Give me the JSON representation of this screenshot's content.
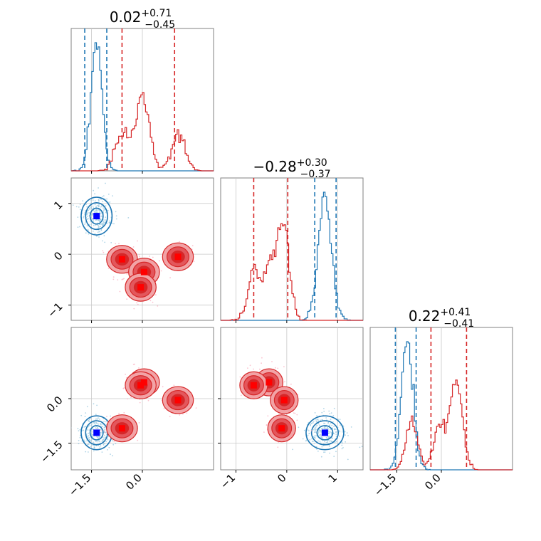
{
  "colors": {
    "red_line": "#d62728",
    "blue_line": "#1f77b4",
    "red_marker": "#ff0000",
    "blue_marker": "#0000ff",
    "red_fill_light": "#f2a3a6",
    "red_fill_mid": "#e3575c",
    "red_fill_dark": "#d62728",
    "frame": "#808080",
    "grid": "#c8c8c8"
  },
  "chart_data": {
    "type": "corner",
    "parameters": [
      "x0",
      "x1",
      "x2"
    ],
    "parameter_ranges": [
      [
        -2.1,
        2.1
      ],
      [
        -1.3,
        1.5
      ],
      [
        -2.4,
        2.4
      ]
    ],
    "titles": [
      {
        "main": "0.02",
        "sup": "+0.71",
        "sub": "−0.45"
      },
      {
        "main": "−0.28",
        "sup": "+0.30",
        "sub": "−0.37"
      },
      {
        "main": "0.22",
        "sup": "+0.41",
        "sub": "−0.41"
      }
    ],
    "ticks": [
      {
        "values": [
          -1.5,
          0.0
        ],
        "labels": [
          "−1.5",
          "0.0"
        ]
      },
      {
        "values": [
          -1,
          0,
          1
        ],
        "labels": [
          "−1",
          "0",
          "1"
        ]
      },
      {
        "values": [
          -1.5,
          0.0
        ],
        "labels": [
          "−1.5",
          "0.0"
        ]
      }
    ],
    "series": [
      {
        "color": "blue",
        "modes": [
          [
            -1.35,
            0.75,
            -1.15
          ]
        ],
        "quantiles": [
          [
            -1.7,
            -1.05
          ],
          [
            0.55,
            0.97
          ],
          [
            -1.55,
            -0.85
          ]
        ]
      },
      {
        "color": "red",
        "modes": [
          [
            -0.6,
            -0.1,
            -1.0
          ],
          [
            0.05,
            -0.35,
            0.55
          ],
          [
            -0.05,
            -0.65,
            0.45
          ],
          [
            1.05,
            -0.05,
            -0.05
          ]
        ],
        "quantiles": [
          [
            -0.6,
            0.95
          ],
          [
            -0.65,
            0.02
          ],
          [
            -0.35,
            0.85
          ]
        ]
      }
    ]
  }
}
